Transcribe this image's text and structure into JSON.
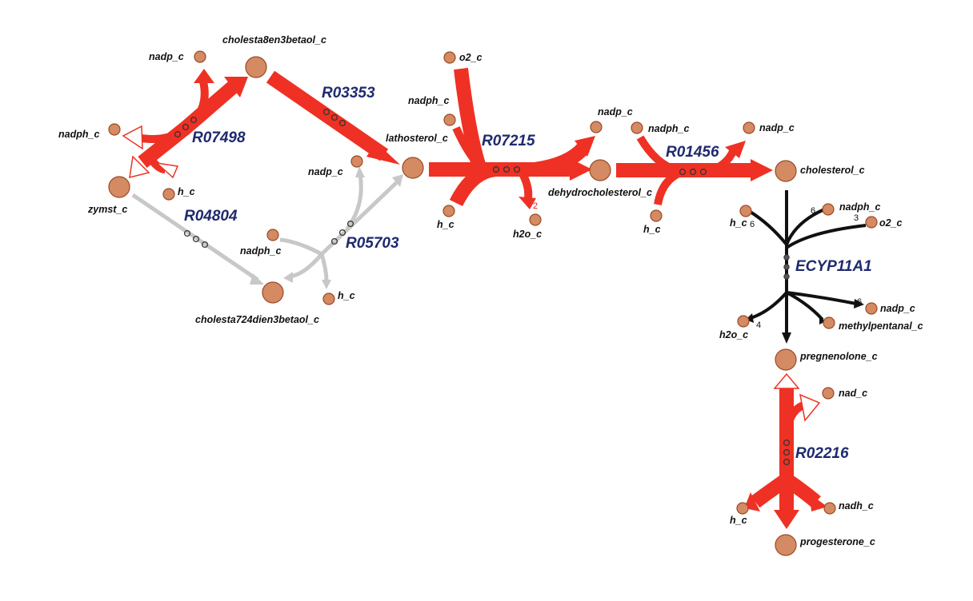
{
  "reactions": {
    "r07498": "R07498",
    "r03353": "R03353",
    "r04804": "R04804",
    "r05703": "R05703",
    "r07215": "R07215",
    "r01456": "R01456",
    "ecyp11a1": "ECYP11A1",
    "r02216": "R02216"
  },
  "metabolites": {
    "nadp_c_1": "nadp_c",
    "cholesta8en3betaol_c": "cholesta8en3betaol_c",
    "nadph_c_1": "nadph_c",
    "zymst_c": "zymst_c",
    "h_c_1": "h_c",
    "nadp_c_2": "nadp_c",
    "nadph_c_2": "nadph_c",
    "h_c_2": "h_c",
    "cholesta724dien3betaol_c": "cholesta724dien3betaol_c",
    "lathosterol_c": "lathosterol_c",
    "o2_c": "o2_c",
    "nadph_c_3": "nadph_c",
    "h_c_3": "h_c",
    "h2o_c_1": "h2o_c",
    "dehydrocholesterol_c": "dehydrocholesterol_c",
    "nadp_c_3": "nadp_c",
    "nadph_c_4": "nadph_c",
    "nadp_c_4": "nadp_c",
    "h_c_4": "h_c",
    "cholesterol_c": "cholesterol_c",
    "h_c_5": "h_c",
    "nadph_c_5": "nadph_c",
    "o2_c_2": "o2_c",
    "h2o_c_2": "h2o_c",
    "methylpentanal_c": "methylpentanal_c",
    "nadp_c_5": "nadp_c",
    "pregnenolone_c": "pregnenolone_c",
    "nad_c": "nad_c",
    "h_c_6": "h_c",
    "nadh_c": "nadh_c",
    "progesterone_c": "progesterone_c"
  },
  "stoichiometry": {
    "h2o_r07215": "2",
    "h_ecyp": "6",
    "nadph_ecyp": "6",
    "o2_ecyp": "3",
    "h2o_ecyp": "4",
    "nadp_ecyp": "6"
  },
  "colors": {
    "active_flux": "#ee3124",
    "inactive_flux": "#c8c8c8",
    "neutral_flux": "#111111",
    "metabolite_fill": "#d48a63",
    "reaction_label": "#1f2a6e"
  }
}
